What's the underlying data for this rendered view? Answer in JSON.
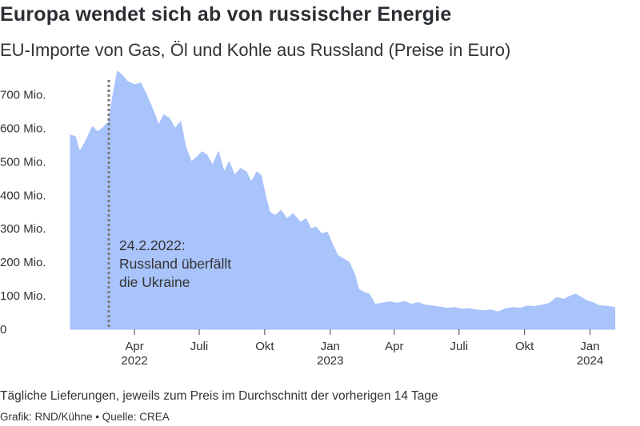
{
  "title": "Europa wendet sich ab von russischer Energie",
  "subtitle": "EU-Importe von Gas, Öl und Kohle aus Russland (Preise in Euro)",
  "footnote": "Tägliche Lieferungen, jeweils zum Preis im Durchschnitt der vorherigen 14 Tage",
  "credit": "Grafik: RND/Kühne • Quelle: CREA",
  "colors": {
    "area": "#a9c3fb",
    "marker": "#7a7a7a",
    "text": "#333333"
  },
  "chart_data": {
    "type": "area",
    "title": "Europa wendet sich ab von russischer Energie",
    "subtitle": "EU-Importe von Gas, Öl und Kohle aus Russland (Preise in Euro)",
    "ylim": [
      0,
      780000000
    ],
    "xlim": [
      "2022-01-01",
      "2024-02-29"
    ],
    "grid": false,
    "y_ticks": [
      {
        "value": 0,
        "label": "0"
      },
      {
        "value": 100000000,
        "label": "100 Mio."
      },
      {
        "value": 200000000,
        "label": "200 Mio."
      },
      {
        "value": 300000000,
        "label": "300 Mio."
      },
      {
        "value": 400000000,
        "label": "400 Mio."
      },
      {
        "value": 500000000,
        "label": "500 Mio."
      },
      {
        "value": 600000000,
        "label": "600 Mio."
      },
      {
        "value": 700000000,
        "label": "700 Mio."
      }
    ],
    "x_ticks": [
      {
        "date": "2022-04-01",
        "label": "Apr",
        "year": "2022"
      },
      {
        "date": "2022-07-01",
        "label": "Juli",
        "year": ""
      },
      {
        "date": "2022-10-01",
        "label": "Okt",
        "year": ""
      },
      {
        "date": "2023-01-01",
        "label": "Jan",
        "year": "2023"
      },
      {
        "date": "2023-04-01",
        "label": "Apr",
        "year": ""
      },
      {
        "date": "2023-07-01",
        "label": "Juli",
        "year": ""
      },
      {
        "date": "2023-10-01",
        "label": "Okt",
        "year": ""
      },
      {
        "date": "2024-01-01",
        "label": "Jan",
        "year": "2024"
      }
    ],
    "annotation": {
      "date": "2022-02-24",
      "lines": [
        "24.2.2022:",
        "Russland überfällt",
        "die Ukraine"
      ]
    },
    "series": [
      {
        "points": [
          {
            "date": "2022-01-01",
            "value": 580000000
          },
          {
            "date": "2022-01-08",
            "value": 575000000
          },
          {
            "date": "2022-01-14",
            "value": 530000000
          },
          {
            "date": "2022-01-22",
            "value": 560000000
          },
          {
            "date": "2022-02-01",
            "value": 605000000
          },
          {
            "date": "2022-02-08",
            "value": 590000000
          },
          {
            "date": "2022-02-15",
            "value": 600000000
          },
          {
            "date": "2022-02-24",
            "value": 620000000
          },
          {
            "date": "2022-03-01",
            "value": 690000000
          },
          {
            "date": "2022-03-08",
            "value": 770000000
          },
          {
            "date": "2022-03-14",
            "value": 760000000
          },
          {
            "date": "2022-03-22",
            "value": 740000000
          },
          {
            "date": "2022-04-01",
            "value": 730000000
          },
          {
            "date": "2022-04-10",
            "value": 735000000
          },
          {
            "date": "2022-04-20",
            "value": 690000000
          },
          {
            "date": "2022-04-28",
            "value": 650000000
          },
          {
            "date": "2022-05-05",
            "value": 610000000
          },
          {
            "date": "2022-05-12",
            "value": 640000000
          },
          {
            "date": "2022-05-20",
            "value": 630000000
          },
          {
            "date": "2022-05-28",
            "value": 600000000
          },
          {
            "date": "2022-06-05",
            "value": 620000000
          },
          {
            "date": "2022-06-12",
            "value": 545000000
          },
          {
            "date": "2022-06-20",
            "value": 500000000
          },
          {
            "date": "2022-06-28",
            "value": 515000000
          },
          {
            "date": "2022-07-05",
            "value": 530000000
          },
          {
            "date": "2022-07-12",
            "value": 520000000
          },
          {
            "date": "2022-07-20",
            "value": 490000000
          },
          {
            "date": "2022-07-28",
            "value": 530000000
          },
          {
            "date": "2022-08-05",
            "value": 470000000
          },
          {
            "date": "2022-08-12",
            "value": 500000000
          },
          {
            "date": "2022-08-20",
            "value": 460000000
          },
          {
            "date": "2022-08-28",
            "value": 480000000
          },
          {
            "date": "2022-09-05",
            "value": 470000000
          },
          {
            "date": "2022-09-12",
            "value": 440000000
          },
          {
            "date": "2022-09-20",
            "value": 470000000
          },
          {
            "date": "2022-09-26",
            "value": 460000000
          },
          {
            "date": "2022-10-02",
            "value": 400000000
          },
          {
            "date": "2022-10-08",
            "value": 350000000
          },
          {
            "date": "2022-10-16",
            "value": 340000000
          },
          {
            "date": "2022-10-24",
            "value": 355000000
          },
          {
            "date": "2022-11-01",
            "value": 330000000
          },
          {
            "date": "2022-11-10",
            "value": 345000000
          },
          {
            "date": "2022-11-20",
            "value": 320000000
          },
          {
            "date": "2022-11-28",
            "value": 330000000
          },
          {
            "date": "2022-12-05",
            "value": 300000000
          },
          {
            "date": "2022-12-12",
            "value": 305000000
          },
          {
            "date": "2022-12-20",
            "value": 285000000
          },
          {
            "date": "2022-12-28",
            "value": 290000000
          },
          {
            "date": "2023-01-05",
            "value": 250000000
          },
          {
            "date": "2023-01-12",
            "value": 220000000
          },
          {
            "date": "2023-01-20",
            "value": 210000000
          },
          {
            "date": "2023-01-28",
            "value": 200000000
          },
          {
            "date": "2023-02-05",
            "value": 160000000
          },
          {
            "date": "2023-02-10",
            "value": 120000000
          },
          {
            "date": "2023-02-18",
            "value": 110000000
          },
          {
            "date": "2023-02-25",
            "value": 105000000
          },
          {
            "date": "2023-03-05",
            "value": 75000000
          },
          {
            "date": "2023-03-15",
            "value": 78000000
          },
          {
            "date": "2023-03-25",
            "value": 82000000
          },
          {
            "date": "2023-04-05",
            "value": 78000000
          },
          {
            "date": "2023-04-15",
            "value": 83000000
          },
          {
            "date": "2023-04-25",
            "value": 75000000
          },
          {
            "date": "2023-05-05",
            "value": 80000000
          },
          {
            "date": "2023-05-15",
            "value": 72000000
          },
          {
            "date": "2023-05-25",
            "value": 70000000
          },
          {
            "date": "2023-06-05",
            "value": 66000000
          },
          {
            "date": "2023-06-15",
            "value": 63000000
          },
          {
            "date": "2023-06-25",
            "value": 65000000
          },
          {
            "date": "2023-07-05",
            "value": 60000000
          },
          {
            "date": "2023-07-15",
            "value": 62000000
          },
          {
            "date": "2023-07-25",
            "value": 58000000
          },
          {
            "date": "2023-08-05",
            "value": 55000000
          },
          {
            "date": "2023-08-15",
            "value": 58000000
          },
          {
            "date": "2023-08-25",
            "value": 52000000
          },
          {
            "date": "2023-09-05",
            "value": 62000000
          },
          {
            "date": "2023-09-15",
            "value": 65000000
          },
          {
            "date": "2023-09-25",
            "value": 63000000
          },
          {
            "date": "2023-10-05",
            "value": 70000000
          },
          {
            "date": "2023-10-15",
            "value": 68000000
          },
          {
            "date": "2023-10-25",
            "value": 72000000
          },
          {
            "date": "2023-11-05",
            "value": 78000000
          },
          {
            "date": "2023-11-15",
            "value": 95000000
          },
          {
            "date": "2023-11-25",
            "value": 90000000
          },
          {
            "date": "2023-12-05",
            "value": 100000000
          },
          {
            "date": "2023-12-12",
            "value": 105000000
          },
          {
            "date": "2023-12-20",
            "value": 95000000
          },
          {
            "date": "2023-12-28",
            "value": 85000000
          },
          {
            "date": "2024-01-05",
            "value": 80000000
          },
          {
            "date": "2024-01-12",
            "value": 72000000
          },
          {
            "date": "2024-01-20",
            "value": 70000000
          },
          {
            "date": "2024-01-28",
            "value": 68000000
          },
          {
            "date": "2024-02-05",
            "value": 65000000
          }
        ]
      }
    ]
  }
}
